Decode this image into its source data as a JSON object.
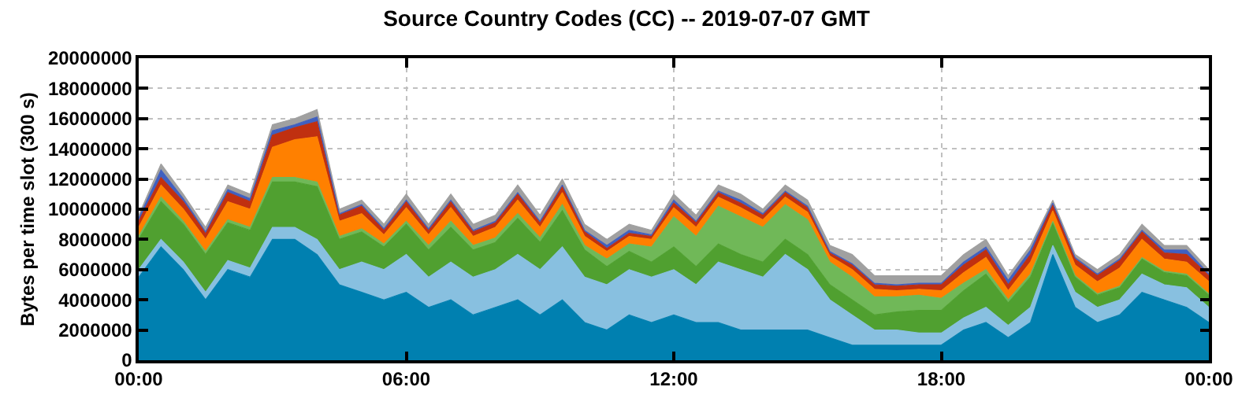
{
  "chart_data": {
    "type": "area",
    "stacked": true,
    "title": "Source Country Codes (CC) -- 2019-07-07 GMT",
    "ylabel": "Bytes per time slot (300 s)",
    "x": [
      0,
      0.5,
      1,
      1.5,
      2,
      2.5,
      3,
      3.5,
      4,
      4.5,
      5,
      5.5,
      6,
      6.5,
      7,
      7.5,
      8,
      8.5,
      9,
      9.5,
      10,
      10.5,
      11,
      11.5,
      12,
      12.5,
      13,
      13.5,
      14,
      14.5,
      15,
      15.5,
      16,
      16.5,
      17,
      17.5,
      18,
      18.5,
      19,
      19.5,
      20,
      20.5,
      21,
      21.5,
      22,
      22.5,
      23,
      23.5,
      24
    ],
    "xlim": [
      0,
      24
    ],
    "xticks": [
      {
        "value": 0,
        "label": "00:00"
      },
      {
        "value": 6,
        "label": "06:00"
      },
      {
        "value": 12,
        "label": "12:00"
      },
      {
        "value": 18,
        "label": "18:00"
      },
      {
        "value": 24,
        "label": "00:00"
      }
    ],
    "ylim": [
      0,
      20000000
    ],
    "yticks": [
      0,
      2000000,
      4000000,
      6000000,
      8000000,
      10000000,
      12000000,
      14000000,
      16000000,
      18000000,
      20000000
    ],
    "grid": true,
    "series": [
      {
        "color": "#0080b0",
        "values": [
          5500000,
          7500000,
          6000000,
          4000000,
          6000000,
          5500000,
          8000000,
          8000000,
          7000000,
          5000000,
          4500000,
          4000000,
          4500000,
          3500000,
          4000000,
          3000000,
          3500000,
          4000000,
          3000000,
          4000000,
          2500000,
          2000000,
          3000000,
          2500000,
          3000000,
          2500000,
          2500000,
          2000000,
          2000000,
          2000000,
          2000000,
          1500000,
          1000000,
          1000000,
          1000000,
          1000000,
          1000000,
          2000000,
          2500000,
          1500000,
          2500000,
          7000000,
          3500000,
          2500000,
          3000000,
          4500000,
          4000000,
          3500000,
          2500000
        ]
      },
      {
        "color": "#88c0e0",
        "values": [
          500000,
          500000,
          500000,
          500000,
          600000,
          600000,
          800000,
          800000,
          1000000,
          1000000,
          2000000,
          2000000,
          2500000,
          2000000,
          2500000,
          2500000,
          2500000,
          3000000,
          3000000,
          3500000,
          3000000,
          3000000,
          3000000,
          3000000,
          3000000,
          2500000,
          4000000,
          4000000,
          3500000,
          5000000,
          4000000,
          2500000,
          2000000,
          1000000,
          1000000,
          800000,
          800000,
          800000,
          1000000,
          800000,
          1000000,
          600000,
          1000000,
          1000000,
          1000000,
          1200000,
          1000000,
          1300000,
          1000000
        ]
      },
      {
        "color": "#50a030",
        "values": [
          2000000,
          2500000,
          2500000,
          2500000,
          2500000,
          2500000,
          3000000,
          3000000,
          3500000,
          2000000,
          2000000,
          1500000,
          2000000,
          1800000,
          2300000,
          1800000,
          1800000,
          2400000,
          1800000,
          2400000,
          1800000,
          1200000,
          1200000,
          1000000,
          1500000,
          1200000,
          1200000,
          1000000,
          1000000,
          1000000,
          1000000,
          1000000,
          1000000,
          1000000,
          1200000,
          1500000,
          1500000,
          1800000,
          2200000,
          1500000,
          2000000,
          1500000,
          1000000,
          800000,
          800000,
          1000000,
          800000,
          800000,
          800000
        ]
      },
      {
        "color": "#70b858",
        "values": [
          200000,
          300000,
          200000,
          200000,
          200000,
          200000,
          300000,
          300000,
          300000,
          200000,
          200000,
          200000,
          200000,
          300000,
          400000,
          300000,
          300000,
          300000,
          300000,
          400000,
          300000,
          500000,
          500000,
          1000000,
          2000000,
          2000000,
          2500000,
          2500000,
          2300000,
          2300000,
          2300000,
          1500000,
          1500000,
          1200000,
          1000000,
          1000000,
          800000,
          500000,
          300000,
          200000,
          200000,
          100000,
          100000,
          100000,
          100000,
          100000,
          100000,
          100000,
          100000
        ]
      },
      {
        "color": "#ff8000",
        "values": [
          600000,
          800000,
          800000,
          800000,
          1200000,
          1200000,
          2000000,
          2500000,
          3000000,
          1000000,
          1000000,
          600000,
          900000,
          700000,
          900000,
          600000,
          700000,
          900000,
          700000,
          800000,
          600000,
          500000,
          500000,
          500000,
          600000,
          600000,
          600000,
          600000,
          500000,
          500000,
          500000,
          400000,
          500000,
          500000,
          400000,
          400000,
          500000,
          700000,
          800000,
          600000,
          800000,
          700000,
          700000,
          800000,
          1200000,
          1200000,
          800000,
          800000,
          800000
        ]
      },
      {
        "color": "#c03010",
        "values": [
          400000,
          500000,
          500000,
          400000,
          600000,
          500000,
          800000,
          800000,
          1000000,
          400000,
          500000,
          300000,
          400000,
          300000,
          400000,
          300000,
          300000,
          400000,
          300000,
          400000,
          300000,
          200000,
          200000,
          200000,
          300000,
          300000,
          300000,
          300000,
          300000,
          300000,
          300000,
          200000,
          300000,
          300000,
          300000,
          300000,
          400000,
          500000,
          500000,
          400000,
          500000,
          400000,
          400000,
          400000,
          500000,
          500000,
          400000,
          500000,
          400000
        ]
      },
      {
        "color": "#4060c0",
        "values": [
          200000,
          500000,
          200000,
          100000,
          200000,
          200000,
          300000,
          200000,
          300000,
          100000,
          100000,
          100000,
          100000,
          100000,
          100000,
          100000,
          100000,
          100000,
          100000,
          100000,
          100000,
          200000,
          200000,
          100000,
          200000,
          100000,
          100000,
          200000,
          100000,
          100000,
          100000,
          100000,
          100000,
          100000,
          100000,
          100000,
          100000,
          200000,
          200000,
          300000,
          300000,
          100000,
          100000,
          100000,
          100000,
          100000,
          200000,
          300000,
          100000
        ]
      },
      {
        "color": "#a0a0a0",
        "values": [
          200000,
          400000,
          300000,
          300000,
          300000,
          300000,
          400000,
          400000,
          500000,
          300000,
          300000,
          300000,
          400000,
          300000,
          400000,
          400000,
          400000,
          500000,
          400000,
          400000,
          400000,
          400000,
          400000,
          300000,
          400000,
          400000,
          400000,
          400000,
          300000,
          400000,
          400000,
          400000,
          600000,
          500000,
          600000,
          500000,
          500000,
          500000,
          500000,
          300000,
          300000,
          200000,
          200000,
          300000,
          300000,
          400000,
          300000,
          300000,
          300000
        ]
      }
    ]
  }
}
